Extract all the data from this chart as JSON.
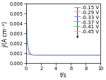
{
  "title": "",
  "xlabel": "t/s",
  "ylabel": "j/(A cm⁻²)",
  "xlim": [
    0,
    10
  ],
  "ylim": [
    0.0,
    0.006
  ],
  "series": [
    {
      "label": "-0.15 V",
      "color": "#999999",
      "A": 0.0002,
      "B": 0.0008,
      "tau": 0.3
    },
    {
      "label": "-0.29 V",
      "color": "#FF9999",
      "A": 0.0022,
      "B": 0.0008,
      "tau": 0.22
    },
    {
      "label": "-0.33 V",
      "color": "#6688FF",
      "A": 0.0028,
      "B": 0.0008,
      "tau": 0.18
    },
    {
      "label": "-0.37 V",
      "color": "#FF55FF",
      "A": 0.0036,
      "B": 0.0008,
      "tau": 0.15
    },
    {
      "label": "-0.41 V",
      "color": "#55CC55",
      "A": 0.0045,
      "B": 0.0008,
      "tau": 0.13
    },
    {
      "label": "-0.45 V",
      "color": "#AABBFF",
      "A": 0.0048,
      "B": 0.0008,
      "tau": 0.13
    }
  ],
  "yticks": [
    0.0,
    0.001,
    0.002,
    0.003,
    0.004,
    0.005,
    0.006
  ],
  "xticks": [
    0,
    2,
    4,
    6,
    8,
    10
  ],
  "legend_fontsize": 5.0,
  "axis_fontsize": 5.5,
  "tick_fontsize": 4.8
}
